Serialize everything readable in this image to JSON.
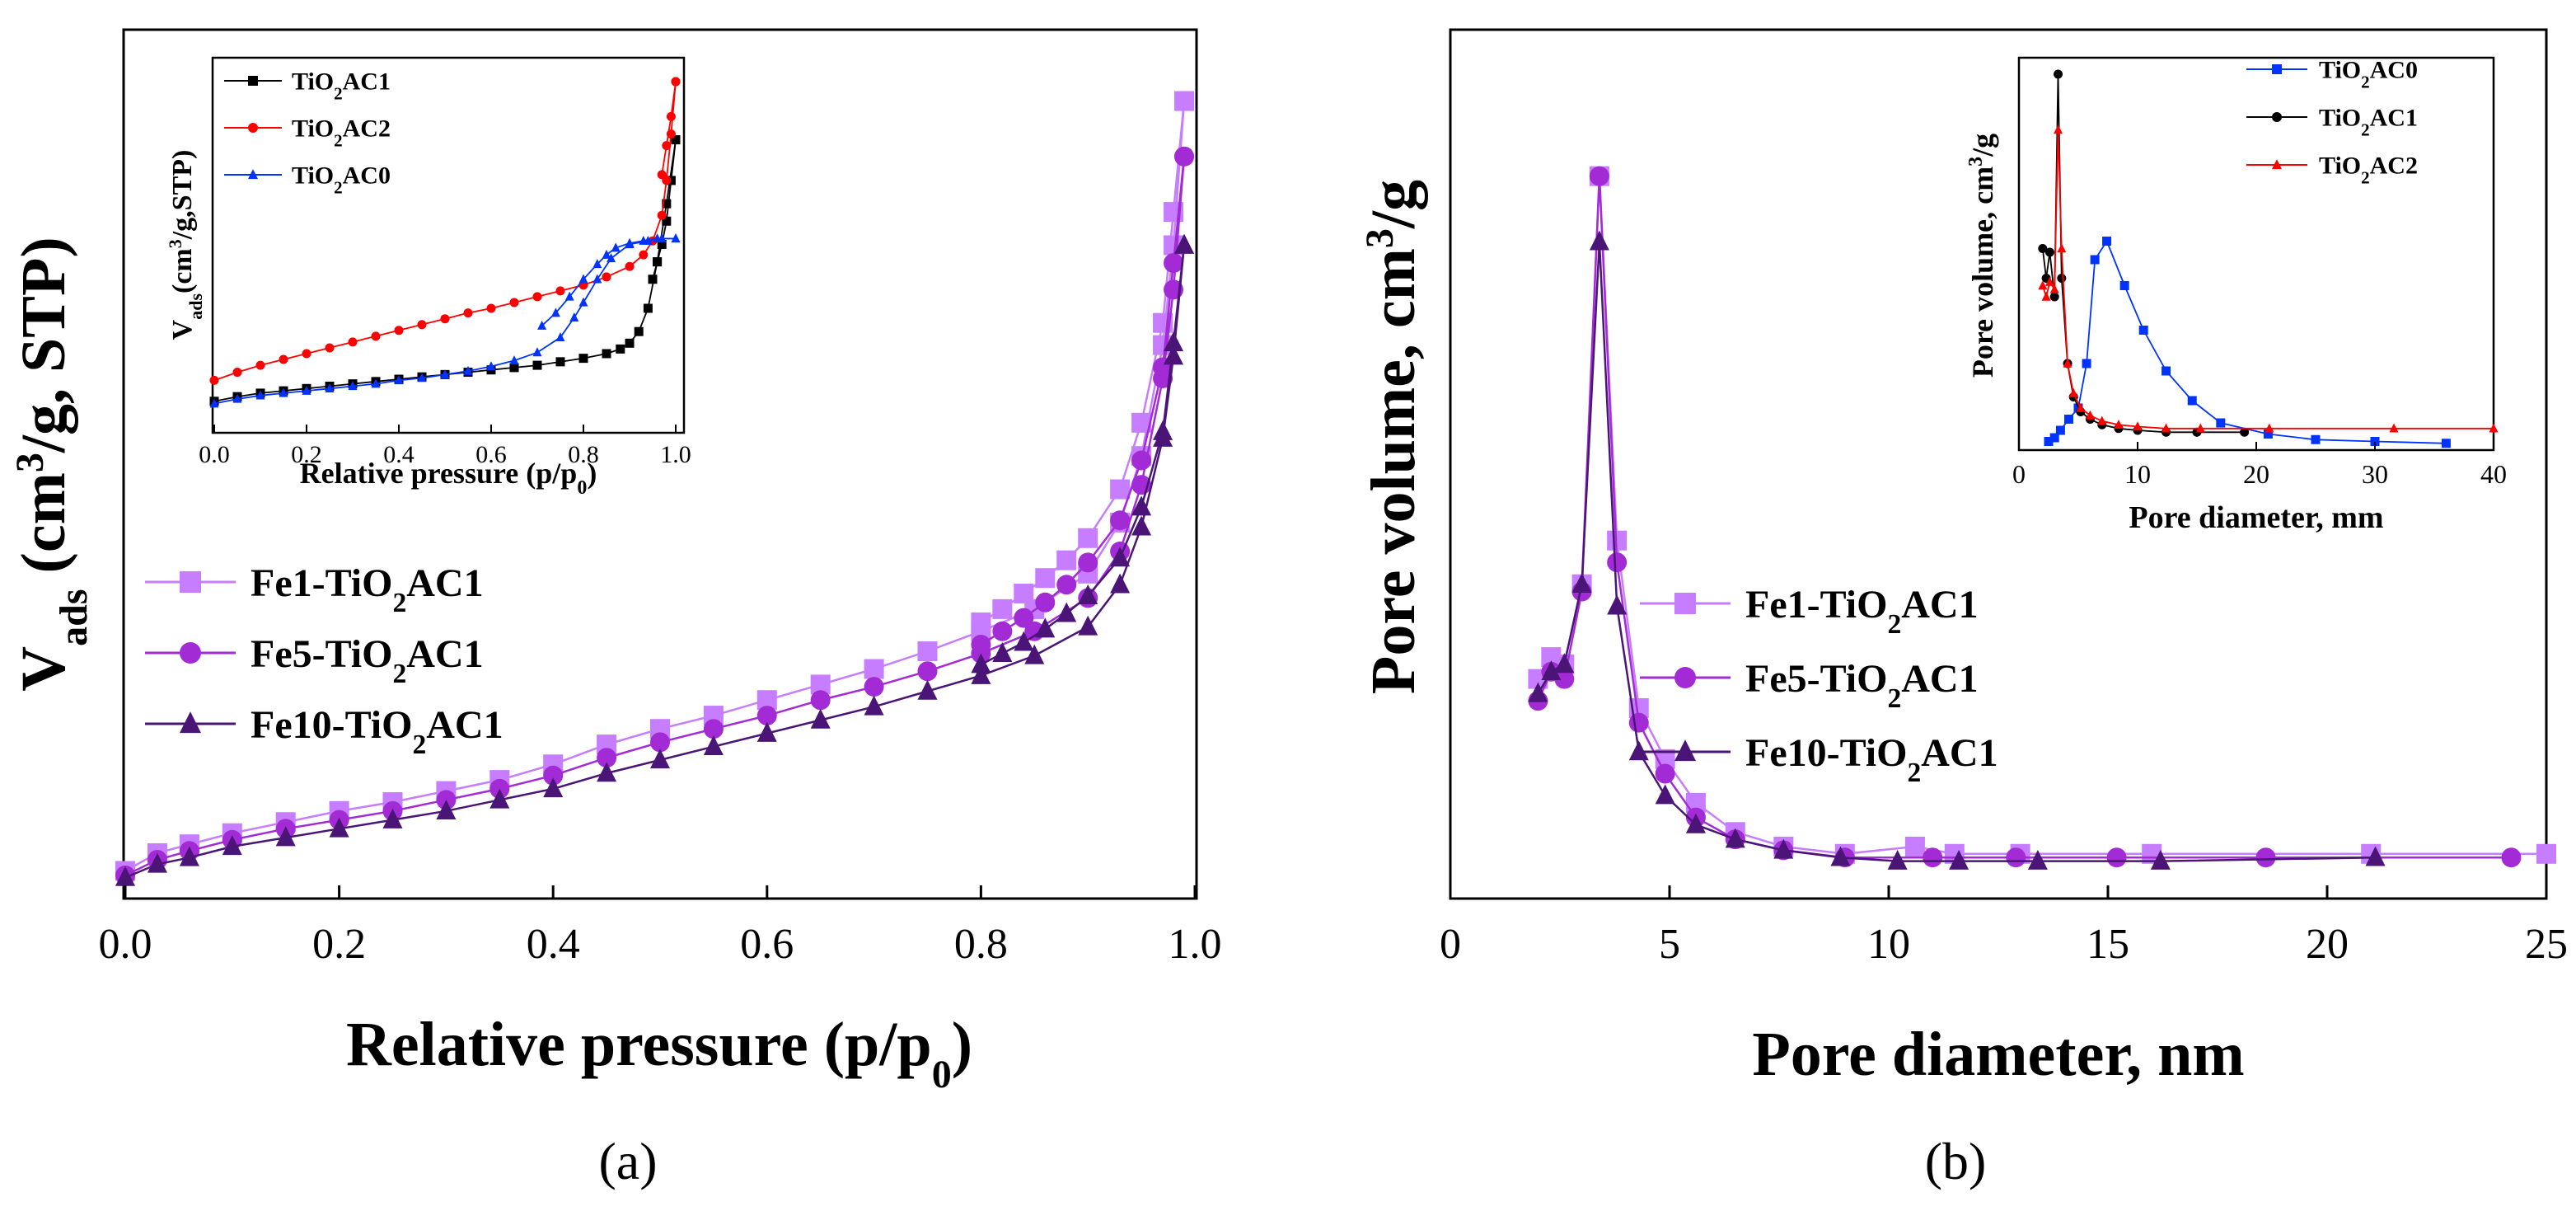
{
  "panels": {
    "a_label": "(a)",
    "b_label": "(b)"
  },
  "chart_data": [
    {
      "id": "a",
      "type": "line",
      "title": "",
      "xlabel": "Relative pressure (p/p0)",
      "ylabel": "Vads (cm3/g, STP)",
      "xlim": [
        0.0,
        1.0
      ],
      "ylim": [
        0,
        350
      ],
      "xticks": [
        0.0,
        0.2,
        0.4,
        0.6,
        0.8,
        1.0
      ],
      "xtick_labels": [
        "0.0",
        "0.2",
        "0.4",
        "0.6",
        "0.8",
        "1.0"
      ],
      "show_y_ticklabels": false,
      "legend_position": "middle-left",
      "series": [
        {
          "name": "Fe1-TiO2AC1",
          "color": "#c77dff",
          "marker": "square",
          "adsorption": {
            "x": [
              0.0,
              0.03,
              0.06,
              0.1,
              0.15,
              0.2,
              0.25,
              0.3,
              0.35,
              0.4,
              0.45,
              0.5,
              0.55,
              0.6,
              0.65,
              0.7,
              0.75,
              0.8,
              0.85,
              0.9,
              0.93,
              0.95,
              0.97,
              0.98,
              0.99
            ],
            "y": [
              8,
              16,
              20,
              25,
              30,
              35,
              39,
              44,
              49,
              56,
              65,
              72,
              78,
              85,
              92,
              99,
              107,
              116,
              126,
              142,
              165,
              195,
              245,
              290,
              355
            ]
          },
          "desorption": {
            "x": [
              0.99,
              0.98,
              0.97,
              0.95,
              0.93,
              0.9,
              0.88,
              0.86,
              0.84,
              0.82,
              0.8
            ],
            "y": [
              355,
              305,
              255,
              210,
              180,
              158,
              148,
              140,
              133,
              126,
              120
            ]
          }
        },
        {
          "name": "Fe5-TiO2AC1",
          "color": "#a32bd6",
          "marker": "circle",
          "adsorption": {
            "x": [
              0.0,
              0.03,
              0.06,
              0.1,
              0.15,
              0.2,
              0.25,
              0.3,
              0.35,
              0.4,
              0.45,
              0.5,
              0.55,
              0.6,
              0.65,
              0.7,
              0.75,
              0.8,
              0.85,
              0.9,
              0.93,
              0.95,
              0.97,
              0.98,
              0.99
            ],
            "y": [
              6,
              13,
              17,
              22,
              27,
              31,
              35,
              40,
              45,
              51,
              59,
              66,
              72,
              78,
              85,
              91,
              98,
              106,
              116,
              131,
              152,
              182,
              230,
              270,
              330
            ]
          },
          "desorption": {
            "x": [
              0.99,
              0.98,
              0.97,
              0.95,
              0.93,
              0.9,
              0.88,
              0.86,
              0.84,
              0.82,
              0.8
            ],
            "y": [
              330,
              282,
              235,
              193,
              166,
              147,
              137,
              129,
              122,
              116,
              110
            ]
          }
        },
        {
          "name": "Fe10-TiO2AC1",
          "color": "#4a1577",
          "marker": "triangle",
          "adsorption": {
            "x": [
              0.0,
              0.03,
              0.06,
              0.1,
              0.15,
              0.2,
              0.25,
              0.3,
              0.35,
              0.4,
              0.45,
              0.5,
              0.55,
              0.6,
              0.65,
              0.7,
              0.75,
              0.8,
              0.85,
              0.9,
              0.93,
              0.95,
              0.97,
              0.98,
              0.99
            ],
            "y": [
              5,
              11,
              14,
              19,
              23,
              27,
              31,
              35,
              40,
              45,
              52,
              58,
              64,
              70,
              76,
              82,
              89,
              96,
              105,
              118,
              137,
              163,
              203,
              240,
              290
            ]
          },
          "desorption": {
            "x": [
              0.99,
              0.98,
              0.97,
              0.95,
              0.93,
              0.9,
              0.88,
              0.86,
              0.84,
              0.82,
              0.8
            ],
            "y": [
              290,
              246,
              206,
              172,
              149,
              132,
              124,
              117,
              111,
              106,
              101
            ]
          }
        }
      ],
      "inset": {
        "type": "line",
        "xlabel": "Relative pressure (p/p0)",
        "ylabel": "Vads(cm3/g,STP)",
        "xlim": [
          0.0,
          1.0
        ],
        "ylim": [
          0,
          300
        ],
        "xticks": [
          0.0,
          0.2,
          0.4,
          0.6,
          0.8,
          1.0
        ],
        "xtick_labels": [
          "0.0",
          "0.2",
          "0.4",
          "0.6",
          "0.8",
          "1.0"
        ],
        "legend_position": "top-left",
        "series": [
          {
            "name": "TiO2AC1",
            "color": "#000000",
            "marker": "square",
            "adsorption": {
              "x": [
                0.0,
                0.05,
                0.1,
                0.15,
                0.2,
                0.25,
                0.3,
                0.35,
                0.4,
                0.45,
                0.5,
                0.55,
                0.6,
                0.65,
                0.7,
                0.75,
                0.8,
                0.85,
                0.88,
                0.9,
                0.92,
                0.94,
                0.96,
                0.98,
                1.0
              ],
              "y": [
                20,
                24,
                27,
                29,
                31,
                33,
                35,
                37,
                39,
                41,
                43,
                45,
                47,
                49,
                51,
                54,
                57,
                61,
                65,
                70,
                80,
                100,
                140,
                190,
                245
              ]
            },
            "desorption": {
              "x": [
                1.0,
                0.99,
                0.98,
                0.97,
                0.96,
                0.95
              ],
              "y": [
                245,
                210,
                175,
                155,
                140,
                125
              ]
            }
          },
          {
            "name": "TiO2AC2",
            "color": "#ff0000",
            "marker": "circle",
            "adsorption": {
              "x": [
                0.0,
                0.05,
                0.1,
                0.15,
                0.2,
                0.25,
                0.3,
                0.35,
                0.4,
                0.45,
                0.5,
                0.55,
                0.6,
                0.65,
                0.7,
                0.75,
                0.8,
                0.85,
                0.9,
                0.93,
                0.95,
                0.97,
                0.98,
                0.99,
                1.0
              ],
              "y": [
                38,
                45,
                51,
                56,
                61,
                66,
                71,
                76,
                81,
                86,
                91,
                96,
                100,
                105,
                110,
                115,
                120,
                127,
                136,
                146,
                158,
                180,
                210,
                250,
                295
              ]
            },
            "desorption": {
              "x": [
                1.0,
                0.99,
                0.98,
                0.97
              ],
              "y": [
                295,
                265,
                240,
                215
              ]
            }
          },
          {
            "name": "TiO2AC0",
            "color": "#0033ff",
            "marker": "triangle",
            "adsorption": {
              "x": [
                0.0,
                0.05,
                0.1,
                0.15,
                0.2,
                0.25,
                0.3,
                0.35,
                0.4,
                0.45,
                0.5,
                0.55,
                0.6,
                0.65,
                0.7,
                0.75,
                0.78,
                0.8,
                0.83,
                0.86,
                0.9,
                0.94,
                0.97,
                1.0
              ],
              "y": [
                18,
                22,
                25,
                27,
                29,
                31,
                33,
                35,
                38,
                40,
                43,
                46,
                50,
                55,
                62,
                75,
                92,
                105,
                125,
                143,
                155,
                158,
                160,
                160
              ]
            },
            "desorption": {
              "x": [
                1.0,
                0.96,
                0.93,
                0.9,
                0.87,
                0.85,
                0.83,
                0.8,
                0.77,
                0.74,
                0.71
              ],
              "y": [
                160,
                160,
                158,
                156,
                152,
                146,
                138,
                125,
                110,
                96,
                85
              ]
            }
          }
        ]
      }
    },
    {
      "id": "b",
      "type": "line",
      "title": "",
      "xlabel": "Pore diameter, nm",
      "ylabel": "Pore volume, cm3/g",
      "xlim": [
        0,
        25
      ],
      "ylim": [
        0,
        1.0
      ],
      "xticks": [
        0,
        5,
        10,
        15,
        20,
        25
      ],
      "xtick_labels": [
        "0",
        "5",
        "10",
        "15",
        "20",
        "25"
      ],
      "show_y_ticklabels": false,
      "legend_position": "middle-right",
      "series": [
        {
          "name": "Fe1-TiO2AC1",
          "color": "#c77dff",
          "marker": "square",
          "x": [
            2.0,
            2.3,
            2.6,
            3.0,
            3.4,
            3.8,
            4.3,
            4.9,
            5.6,
            6.5,
            7.6,
            9.0,
            10.6,
            11.5,
            13.0,
            16.0,
            21.0,
            25.0
          ],
          "y": [
            0.29,
            0.32,
            0.31,
            0.42,
            0.98,
            0.48,
            0.25,
            0.18,
            0.12,
            0.08,
            0.06,
            0.05,
            0.06,
            0.05,
            0.05,
            0.05,
            0.05,
            0.05
          ]
        },
        {
          "name": "Fe5-TiO2AC1",
          "color": "#a32bd6",
          "marker": "circle",
          "x": [
            2.0,
            2.3,
            2.6,
            3.0,
            3.4,
            3.8,
            4.3,
            4.9,
            5.6,
            6.5,
            7.6,
            9.0,
            11.0,
            12.9,
            15.2,
            18.6,
            24.2
          ],
          "y": [
            0.26,
            0.3,
            0.29,
            0.41,
            0.98,
            0.45,
            0.23,
            0.16,
            0.1,
            0.07,
            0.055,
            0.045,
            0.045,
            0.045,
            0.045,
            0.045,
            0.045
          ]
        },
        {
          "name": "Fe10-TiO2AC1",
          "color": "#4a1577",
          "marker": "triangle",
          "x": [
            2.0,
            2.3,
            2.6,
            3.0,
            3.4,
            3.8,
            4.3,
            4.9,
            5.6,
            6.5,
            7.6,
            8.9,
            10.2,
            11.6,
            13.4,
            16.2,
            21.1
          ],
          "y": [
            0.27,
            0.3,
            0.31,
            0.42,
            0.89,
            0.39,
            0.19,
            0.13,
            0.09,
            0.07,
            0.055,
            0.045,
            0.04,
            0.04,
            0.04,
            0.04,
            0.045
          ]
        }
      ],
      "inset": {
        "type": "line",
        "xlabel": "Pore diameter, mm",
        "ylabel": "Pore volume, cm3/g",
        "xlim": [
          0,
          40
        ],
        "ylim": [
          0,
          1.0
        ],
        "xticks": [
          0,
          10,
          20,
          30,
          40
        ],
        "xtick_labels": [
          "0",
          "10",
          "20",
          "30",
          "40"
        ],
        "legend_position": "top-right",
        "series": [
          {
            "name": "TiO2AC0",
            "color": "#0033ff",
            "marker": "square",
            "x": [
              2.5,
              3.0,
              3.5,
              4.2,
              5.0,
              5.7,
              6.4,
              7.4,
              8.9,
              10.5,
              12.4,
              14.6,
              17.0,
              21.0,
              25.0,
              30.0,
              36.0
            ],
            "y": [
              0.01,
              0.02,
              0.04,
              0.07,
              0.1,
              0.22,
              0.5,
              0.55,
              0.43,
              0.31,
              0.2,
              0.12,
              0.06,
              0.03,
              0.015,
              0.01,
              0.005
            ]
          },
          {
            "name": "TiO2AC1",
            "color": "#000000",
            "marker": "circle",
            "x": [
              2.0,
              2.3,
              2.6,
              3.0,
              3.3,
              3.6,
              4.1,
              4.6,
              5.2,
              6.0,
              7.0,
              8.4,
              10.0,
              12.4,
              15.0,
              19.0
            ],
            "y": [
              0.53,
              0.45,
              0.52,
              0.4,
              1.0,
              0.45,
              0.22,
              0.13,
              0.09,
              0.07,
              0.055,
              0.045,
              0.04,
              0.035,
              0.035,
              0.035
            ]
          },
          {
            "name": "TiO2AC2",
            "color": "#ff0000",
            "marker": "triangle",
            "x": [
              2.0,
              2.3,
              2.6,
              3.0,
              3.3,
              3.6,
              4.1,
              4.6,
              5.2,
              6.0,
              7.0,
              8.4,
              10.0,
              12.4,
              15.3,
              21.1,
              31.6,
              40.0
            ],
            "y": [
              0.43,
              0.4,
              0.44,
              0.42,
              0.85,
              0.53,
              0.22,
              0.14,
              0.1,
              0.08,
              0.065,
              0.055,
              0.05,
              0.045,
              0.045,
              0.045,
              0.045,
              0.045
            ]
          }
        ]
      }
    }
  ]
}
